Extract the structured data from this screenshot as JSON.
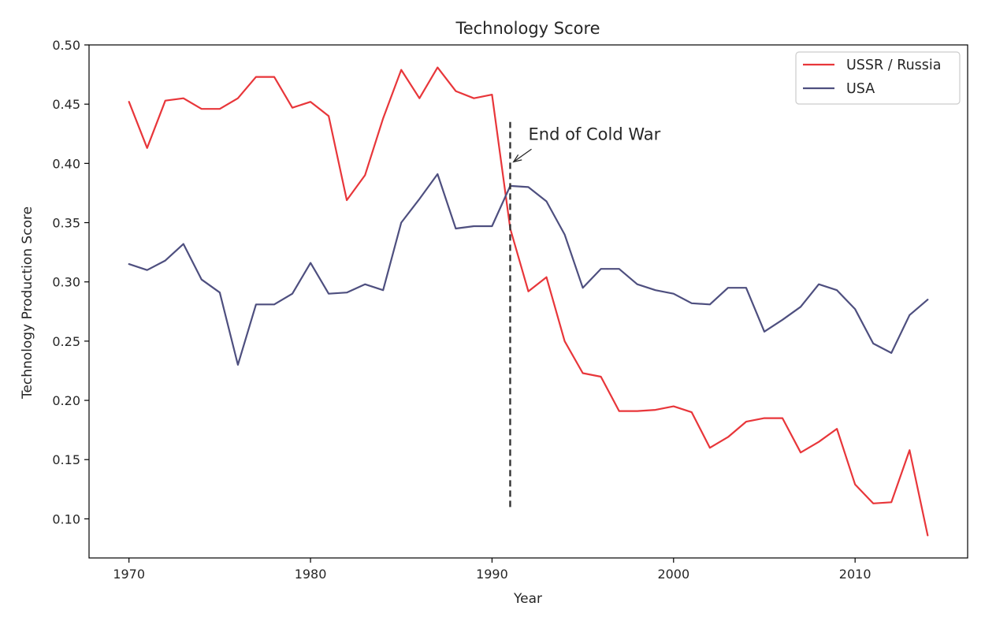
{
  "chart_data": {
    "type": "line",
    "title": "Technology Score",
    "xlabel": "Year",
    "ylabel": "Technology Production Score",
    "xlim": [
      1967.8,
      2016.2
    ],
    "ylim": [
      0.067,
      0.5
    ],
    "xticks": [
      1970,
      1980,
      1990,
      2000,
      2010
    ],
    "yticks": [
      "0.10",
      "0.15",
      "0.20",
      "0.25",
      "0.30",
      "0.35",
      "0.40",
      "0.45",
      "0.50"
    ],
    "x": [
      1970,
      1971,
      1972,
      1973,
      1974,
      1975,
      1976,
      1977,
      1978,
      1979,
      1980,
      1981,
      1982,
      1983,
      1984,
      1985,
      1986,
      1987,
      1988,
      1989,
      1990,
      1991,
      1992,
      1993,
      1994,
      1995,
      1996,
      1997,
      1998,
      1999,
      2000,
      2001,
      2002,
      2003,
      2004,
      2005,
      2006,
      2007,
      2008,
      2009,
      2010,
      2011,
      2012,
      2013,
      2014
    ],
    "series": [
      {
        "name": "USSR / Russia",
        "color": "#e8363a",
        "values": [
          0.452,
          0.413,
          0.453,
          0.455,
          0.446,
          0.446,
          0.455,
          0.473,
          0.473,
          0.447,
          0.452,
          0.44,
          0.369,
          0.39,
          0.438,
          0.479,
          0.455,
          0.481,
          0.461,
          0.455,
          0.458,
          0.345,
          0.292,
          0.304,
          0.25,
          0.223,
          0.22,
          0.191,
          0.191,
          0.192,
          0.195,
          0.19,
          0.16,
          0.169,
          0.182,
          0.185,
          0.185,
          0.156,
          0.165,
          0.176,
          0.129,
          0.113,
          0.114,
          0.158,
          0.086
        ]
      },
      {
        "name": "USA",
        "color": "#4e4f7f",
        "values": [
          0.315,
          0.31,
          0.318,
          0.332,
          0.302,
          0.291,
          0.23,
          0.281,
          0.281,
          0.29,
          0.316,
          0.29,
          0.291,
          0.298,
          0.293,
          0.35,
          0.37,
          0.391,
          0.345,
          0.347,
          0.347,
          0.381,
          0.38,
          0.368,
          0.34,
          0.295,
          0.311,
          0.311,
          0.298,
          0.293,
          0.29,
          0.282,
          0.281,
          0.295,
          0.295,
          0.258,
          0.268,
          0.279,
          0.298,
          0.293,
          0.277,
          0.248,
          0.24,
          0.272,
          0.285
        ]
      }
    ],
    "vline": {
      "x": 1991,
      "y_range": [
        0.11,
        0.435
      ],
      "style": "dashed",
      "color": "#333333"
    },
    "annotation": {
      "text": "End of Cold War",
      "text_x": 1992,
      "text_y": 0.42,
      "arrow_to_x": 1991.1,
      "arrow_to_y": 0.4
    },
    "legend": {
      "position": "top-right"
    },
    "grid": false
  }
}
